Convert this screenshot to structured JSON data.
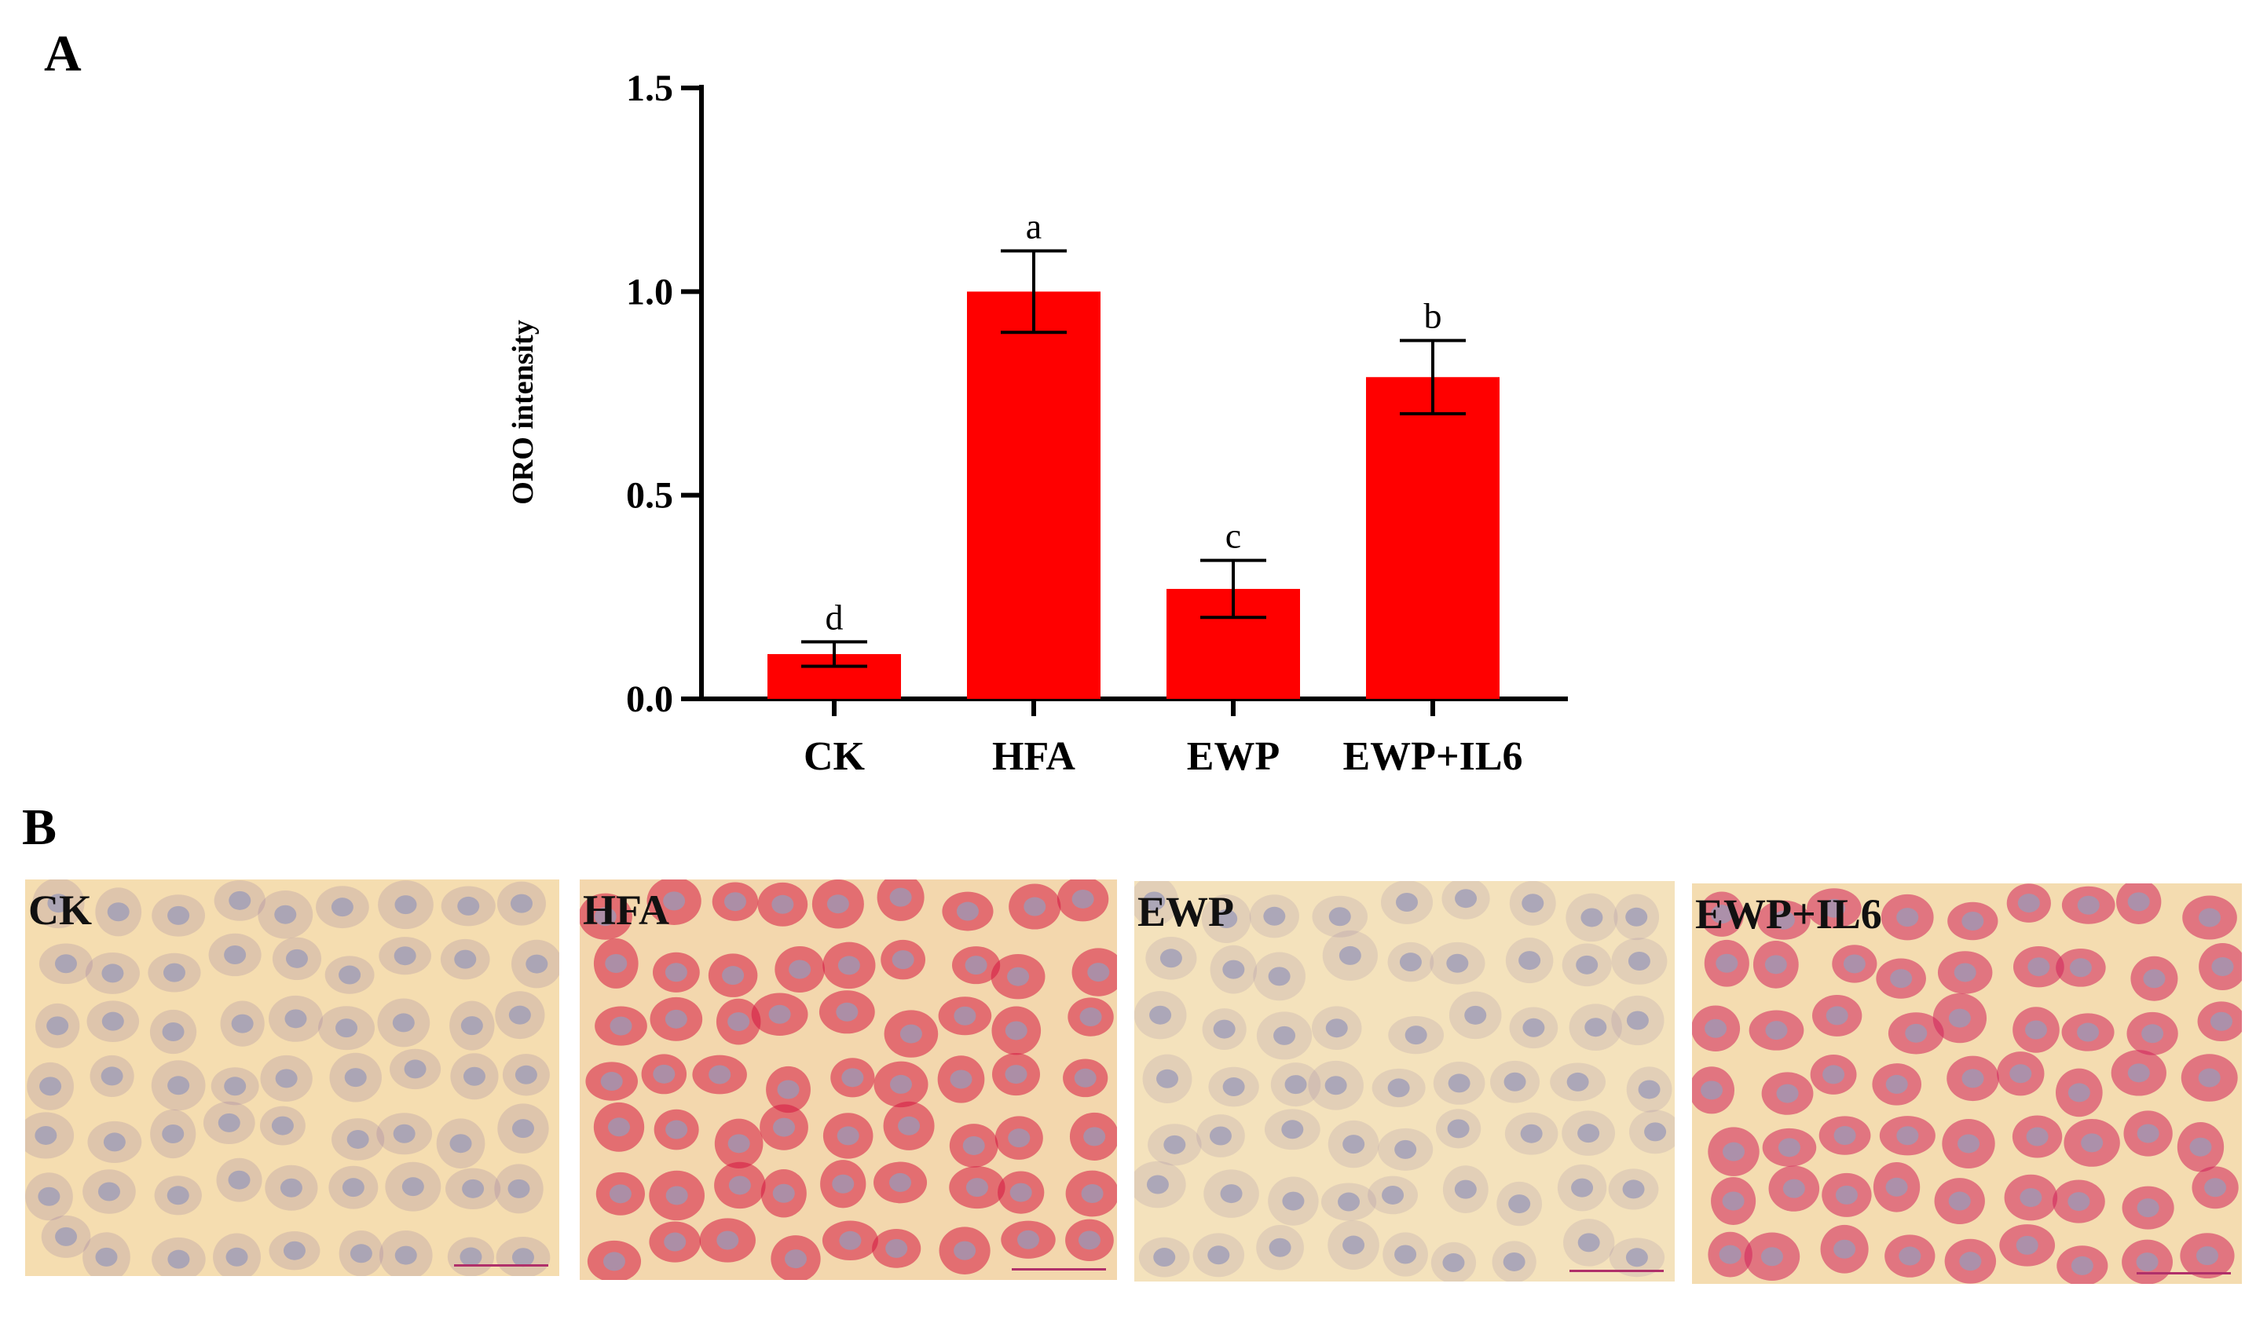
{
  "panel_a_label": "A",
  "panel_b_label": "B",
  "chart_data": {
    "type": "bar",
    "categories": [
      "CK",
      "HFA",
      "EWP",
      "EWP+IL6"
    ],
    "values": [
      0.11,
      1.0,
      0.27,
      0.79
    ],
    "errors": [
      0.03,
      0.1,
      0.07,
      0.09
    ],
    "significance_letters": [
      "d",
      "a",
      "c",
      "b"
    ],
    "ylabel": "ORO intensity",
    "xlabel": "",
    "ylim": [
      0.0,
      1.5
    ],
    "yticks": [
      "0.0",
      "0.5",
      "1.0",
      "1.5"
    ],
    "bar_color": "#ff0000",
    "grid": false
  },
  "micrographs": [
    {
      "label": "CK",
      "background": "#f5ddb0",
      "stain": "#7a5a9a",
      "scale_bar_color": "#b0306a"
    },
    {
      "label": "HFA",
      "background": "#f3d7ad",
      "stain": "#d6183f",
      "scale_bar_color": "#b0306a"
    },
    {
      "label": "EWP",
      "background": "#f4e2bc",
      "stain": "#8f7a9e",
      "scale_bar_color": "#b0306a"
    },
    {
      "label": "EWP+IL6",
      "background": "#f4dcb0",
      "stain": "#d2205a",
      "scale_bar_color": "#b0306a"
    }
  ]
}
